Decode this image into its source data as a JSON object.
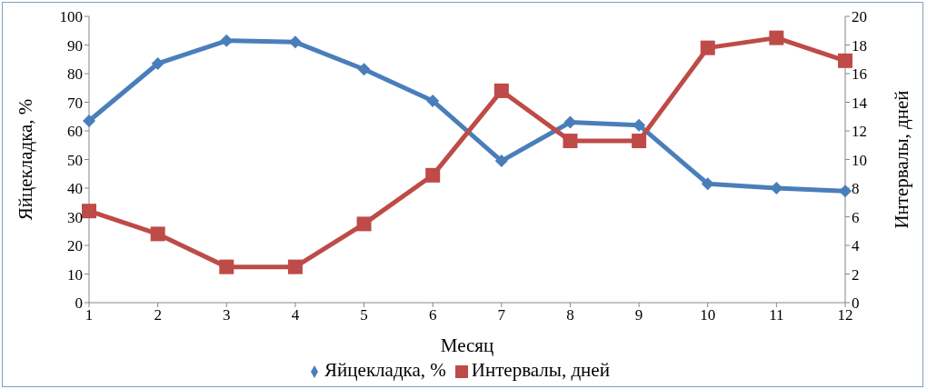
{
  "chart_data": {
    "type": "line",
    "xlabel": "Месяц",
    "ylabel": "Яйцекладка, %",
    "y2label": "Интервалы, дней",
    "x": [
      1,
      2,
      3,
      4,
      5,
      6,
      7,
      8,
      9,
      10,
      11,
      12
    ],
    "xlim": [
      1,
      12
    ],
    "xticks": [
      1,
      2,
      3,
      4,
      5,
      6,
      7,
      8,
      9,
      10,
      11,
      12
    ],
    "ylim": [
      0,
      100
    ],
    "yticks": [
      0,
      10,
      20,
      30,
      40,
      50,
      60,
      70,
      80,
      90,
      100
    ],
    "y2lim": [
      0,
      20
    ],
    "y2ticks": [
      0,
      2,
      4,
      6,
      8,
      10,
      12,
      14,
      16,
      18,
      20
    ],
    "grid": false,
    "legend": "bottom",
    "series": [
      {
        "name": "Яйцекладка, %",
        "color": "#4a7ebb",
        "marker": "diamond",
        "values": [
          63.5,
          83.5,
          91.5,
          91,
          81.5,
          70.5,
          49.5,
          63,
          62,
          41.5,
          40,
          39
        ]
      },
      {
        "name": "Интервалы, дней",
        "color": "#be4b48",
        "marker": "square",
        "axis": "y2",
        "values": [
          6.4,
          4.8,
          2.5,
          2.5,
          5.5,
          8.9,
          14.8,
          11.3,
          11.3,
          17.8,
          18.5,
          16.9
        ]
      }
    ]
  }
}
